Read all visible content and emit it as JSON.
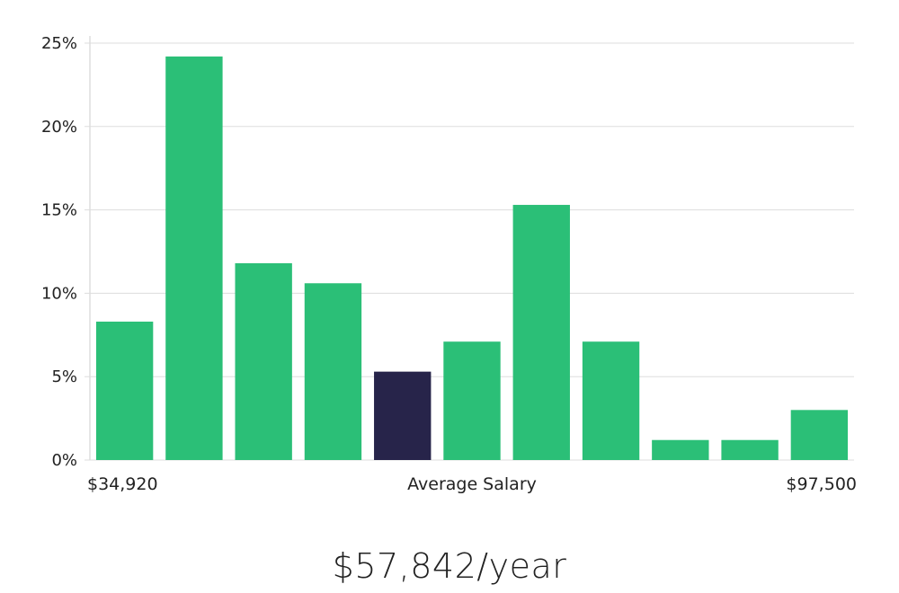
{
  "chart_data": {
    "type": "bar",
    "series": [
      {
        "values": [
          8.3,
          24.2,
          11.8,
          10.6,
          5.3,
          7.1,
          15.3,
          7.1,
          1.2,
          1.2,
          3.0
        ]
      }
    ],
    "highlight_index": 4,
    "ylim": [
      0,
      25
    ],
    "yticks": [
      0,
      5,
      10,
      15,
      20,
      25
    ],
    "ytick_labels": [
      "0%",
      "5%",
      "10%",
      "15%",
      "20%",
      "25%"
    ],
    "x_range_labels": {
      "min": "$34,920",
      "mid": "Average Salary",
      "max": "$97,500"
    },
    "grid": true,
    "colors": {
      "bar": "#2bbf77",
      "highlight": "#27244a",
      "grid": "#dddddd",
      "axis": "#cccccc"
    }
  },
  "summary": {
    "average_salary": "$57,842/year"
  }
}
